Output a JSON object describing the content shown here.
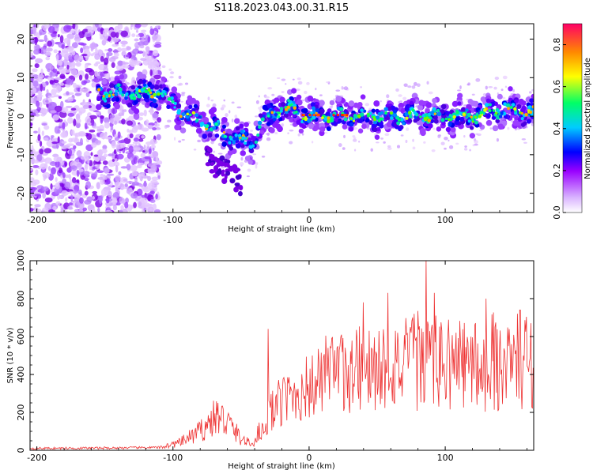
{
  "title": "S118.2023.043.00.31.R15",
  "colors": {
    "background": "#ffffff",
    "axis": "#000000",
    "snr_line": "#ee3333"
  },
  "chart_data": [
    {
      "type": "heatmap",
      "xlabel": "Height of straight line (km)",
      "ylabel": "Frequency (Hz)",
      "xlim": [
        -205,
        165
      ],
      "ylim": [
        -25,
        24
      ],
      "xticks": [
        -200,
        -100,
        0,
        100
      ],
      "yticks": [
        20,
        10,
        0,
        -10,
        -20
      ],
      "colorbar": {
        "label": "Normalized spectral amplitude",
        "range": [
          0,
          0.9
        ],
        "ticks": [
          0.0,
          0.2,
          0.4,
          0.6,
          0.8
        ],
        "colormap": [
          "#ffffff",
          "#9900ff",
          "#0000ff",
          "#00ccff",
          "#00ff66",
          "#ffff00",
          "#ff8800",
          "#ff0066"
        ]
      },
      "ridge": [
        {
          "x": -150,
          "y": 6
        },
        {
          "x": -130,
          "y": 6
        },
        {
          "x": -110,
          "y": 6
        },
        {
          "x": -100,
          "y": 3
        },
        {
          "x": -90,
          "y": 0
        },
        {
          "x": -80,
          "y": -1
        },
        {
          "x": -70,
          "y": -3
        },
        {
          "x": -60,
          "y": -5
        },
        {
          "x": -50,
          "y": -6
        },
        {
          "x": -42,
          "y": -7
        },
        {
          "x": -35,
          "y": -2
        },
        {
          "x": -25,
          "y": 1
        },
        {
          "x": -15,
          "y": 2
        },
        {
          "x": 0,
          "y": 0
        },
        {
          "x": 20,
          "y": 0
        },
        {
          "x": 40,
          "y": 0
        },
        {
          "x": 60,
          "y": 0
        },
        {
          "x": 80,
          "y": 0
        },
        {
          "x": 100,
          "y": 0
        },
        {
          "x": 120,
          "y": 0
        },
        {
          "x": 140,
          "y": 2
        },
        {
          "x": 165,
          "y": 1
        }
      ]
    },
    {
      "type": "line",
      "xlabel": "Height of straight line (km)",
      "ylabel": "SNR (10 * v/v)",
      "xlim": [
        -205,
        165
      ],
      "ylim": [
        0,
        1000
      ],
      "xticks": [
        -200,
        -100,
        0,
        100
      ],
      "yticks": [
        0,
        200,
        400,
        600,
        800,
        1000
      ],
      "series": [
        {
          "color": "#ee3333",
          "envelope": [
            {
              "x": -205,
              "y": 10
            },
            {
              "x": -150,
              "y": 12
            },
            {
              "x": -110,
              "y": 15
            },
            {
              "x": -95,
              "y": 40
            },
            {
              "x": -80,
              "y": 100
            },
            {
              "x": -68,
              "y": 180
            },
            {
              "x": -60,
              "y": 150
            },
            {
              "x": -50,
              "y": 60
            },
            {
              "x": -42,
              "y": 30
            },
            {
              "x": -35,
              "y": 120
            },
            {
              "x": -25,
              "y": 230
            },
            {
              "x": -10,
              "y": 300
            },
            {
              "x": 0,
              "y": 330
            },
            {
              "x": 20,
              "y": 400
            },
            {
              "x": 40,
              "y": 430
            },
            {
              "x": 60,
              "y": 450
            },
            {
              "x": 80,
              "y": 460
            },
            {
              "x": 100,
              "y": 460
            },
            {
              "x": 120,
              "y": 450
            },
            {
              "x": 140,
              "y": 450
            },
            {
              "x": 165,
              "y": 480
            }
          ],
          "peaks": [
            {
              "x": -30,
              "y": 640
            },
            {
              "x": 40,
              "y": 780
            },
            {
              "x": 58,
              "y": 830
            },
            {
              "x": 86,
              "y": 1000
            },
            {
              "x": 92,
              "y": 830
            },
            {
              "x": 130,
              "y": 800
            },
            {
              "x": 155,
              "y": 740
            }
          ]
        }
      ]
    }
  ]
}
